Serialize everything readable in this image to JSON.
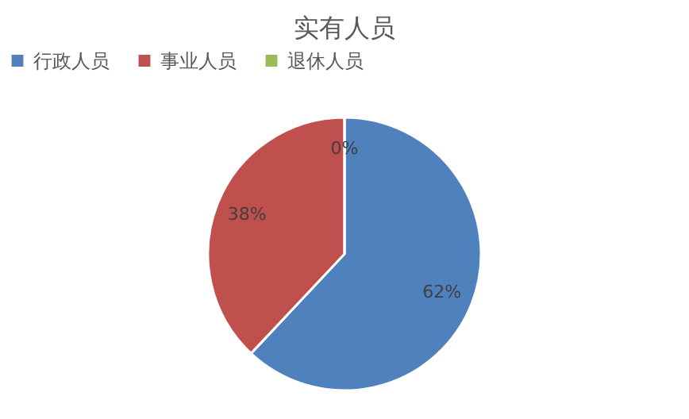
{
  "chart_data": {
    "type": "pie",
    "title": "实有人员",
    "categories": [
      "行政人员",
      "事业人员",
      "退休人员"
    ],
    "values": [
      62,
      38,
      0
    ],
    "colors": [
      "#4f81bd",
      "#c0504d",
      "#9bbb59"
    ],
    "value_labels": [
      "62%",
      "38%",
      "0%"
    ],
    "legend": "top"
  }
}
